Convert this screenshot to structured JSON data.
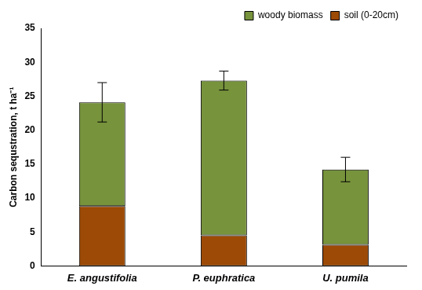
{
  "chart_data": {
    "type": "bar",
    "stacked": true,
    "y_label": "Carbon sequstration, t ha⁻¹",
    "categories": [
      "E. angustifolia",
      "P. euphratica",
      "U. pumila"
    ],
    "series": [
      {
        "name": "soil (0-20cm)",
        "color": "#9c4a06",
        "values": [
          8.8,
          4.5,
          3.1
        ]
      },
      {
        "name": "woody biomass",
        "color": "#77933c",
        "values": [
          15.3,
          22.8,
          11.1
        ],
        "errors": [
          2.9,
          1.4,
          1.8
        ]
      }
    ],
    "ylim": [
      0,
      35
    ],
    "yticks": [
      0,
      5,
      10,
      15,
      20,
      25,
      30,
      35
    ],
    "grid": false,
    "legend": "upper right"
  }
}
